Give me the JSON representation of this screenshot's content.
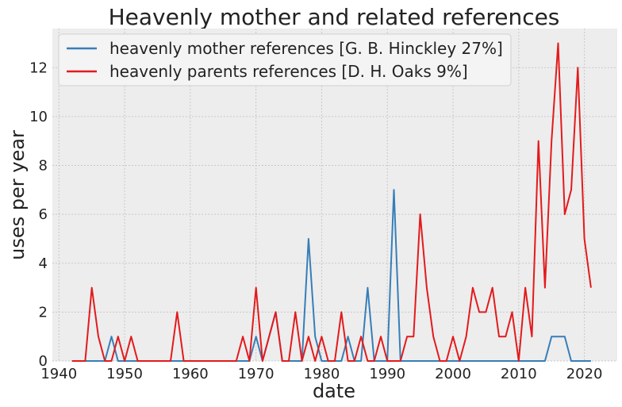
{
  "chart_data": {
    "type": "line",
    "title": "Heavenly mother and related references",
    "xlabel": "date",
    "ylabel": "uses per year",
    "xlim": [
      1939,
      2025
    ],
    "ylim": [
      0,
      13.6
    ],
    "xticks": [
      1940,
      1950,
      1960,
      1970,
      1980,
      1990,
      2000,
      2010,
      2020
    ],
    "yticks": [
      0,
      2,
      4,
      6,
      8,
      10,
      12
    ],
    "grid": true,
    "legend_position": "top-left",
    "series": [
      {
        "name": "heavenly mother references [G. B. Hinckley 27%]",
        "color": "#377eb8",
        "x": [
          1942,
          1943,
          1944,
          1945,
          1946,
          1947,
          1948,
          1949,
          1950,
          1951,
          1952,
          1953,
          1954,
          1955,
          1956,
          1957,
          1958,
          1959,
          1960,
          1961,
          1962,
          1963,
          1964,
          1965,
          1966,
          1967,
          1968,
          1969,
          1970,
          1971,
          1972,
          1973,
          1974,
          1975,
          1976,
          1977,
          1978,
          1979,
          1980,
          1981,
          1982,
          1983,
          1984,
          1985,
          1986,
          1987,
          1988,
          1989,
          1990,
          1991,
          1992,
          1993,
          1994,
          1995,
          1996,
          1997,
          1998,
          1999,
          2000,
          2001,
          2002,
          2003,
          2004,
          2005,
          2006,
          2007,
          2008,
          2009,
          2010,
          2011,
          2012,
          2013,
          2014,
          2015,
          2016,
          2017,
          2018,
          2019,
          2020,
          2021
        ],
        "y": [
          0,
          0,
          0,
          0,
          0,
          0,
          1,
          0,
          0,
          0,
          0,
          0,
          0,
          0,
          0,
          0,
          0,
          0,
          0,
          0,
          0,
          0,
          0,
          0,
          0,
          0,
          0,
          0,
          1,
          0,
          1,
          2,
          0,
          0,
          0,
          0,
          5,
          1,
          0,
          0,
          0,
          0,
          1,
          0,
          0,
          3,
          0,
          0,
          0,
          7,
          0,
          0,
          0,
          0,
          0,
          0,
          0,
          0,
          0,
          0,
          0,
          0,
          0,
          0,
          0,
          0,
          0,
          0,
          0,
          0,
          0,
          0,
          0,
          1,
          1,
          1,
          0,
          0,
          0,
          0
        ]
      },
      {
        "name": "heavenly parents references [D. H. Oaks 9%]",
        "color": "#e41a1c",
        "x": [
          1942,
          1943,
          1944,
          1945,
          1946,
          1947,
          1948,
          1949,
          1950,
          1951,
          1952,
          1953,
          1954,
          1955,
          1956,
          1957,
          1958,
          1959,
          1960,
          1961,
          1962,
          1963,
          1964,
          1965,
          1966,
          1967,
          1968,
          1969,
          1970,
          1971,
          1972,
          1973,
          1974,
          1975,
          1976,
          1977,
          1978,
          1979,
          1980,
          1981,
          1982,
          1983,
          1984,
          1985,
          1986,
          1987,
          1988,
          1989,
          1990,
          1991,
          1992,
          1993,
          1994,
          1995,
          1996,
          1997,
          1998,
          1999,
          2000,
          2001,
          2002,
          2003,
          2004,
          2005,
          2006,
          2007,
          2008,
          2009,
          2010,
          2011,
          2012,
          2013,
          2014,
          2015,
          2016,
          2017,
          2018,
          2019,
          2020,
          2021
        ],
        "y": [
          0,
          0,
          0,
          3,
          1,
          0,
          0,
          1,
          0,
          1,
          0,
          0,
          0,
          0,
          0,
          0,
          2,
          0,
          0,
          0,
          0,
          0,
          0,
          0,
          0,
          0,
          1,
          0,
          3,
          0,
          1,
          2,
          0,
          0,
          2,
          0,
          1,
          0,
          1,
          0,
          0,
          2,
          0,
          0,
          1,
          0,
          0,
          1,
          0,
          0,
          0,
          1,
          1,
          6,
          3,
          1,
          0,
          0,
          1,
          0,
          1,
          3,
          2,
          2,
          3,
          1,
          1,
          2,
          0,
          3,
          1,
          9,
          3,
          9,
          13,
          6,
          7,
          12,
          5,
          3
        ]
      }
    ]
  }
}
